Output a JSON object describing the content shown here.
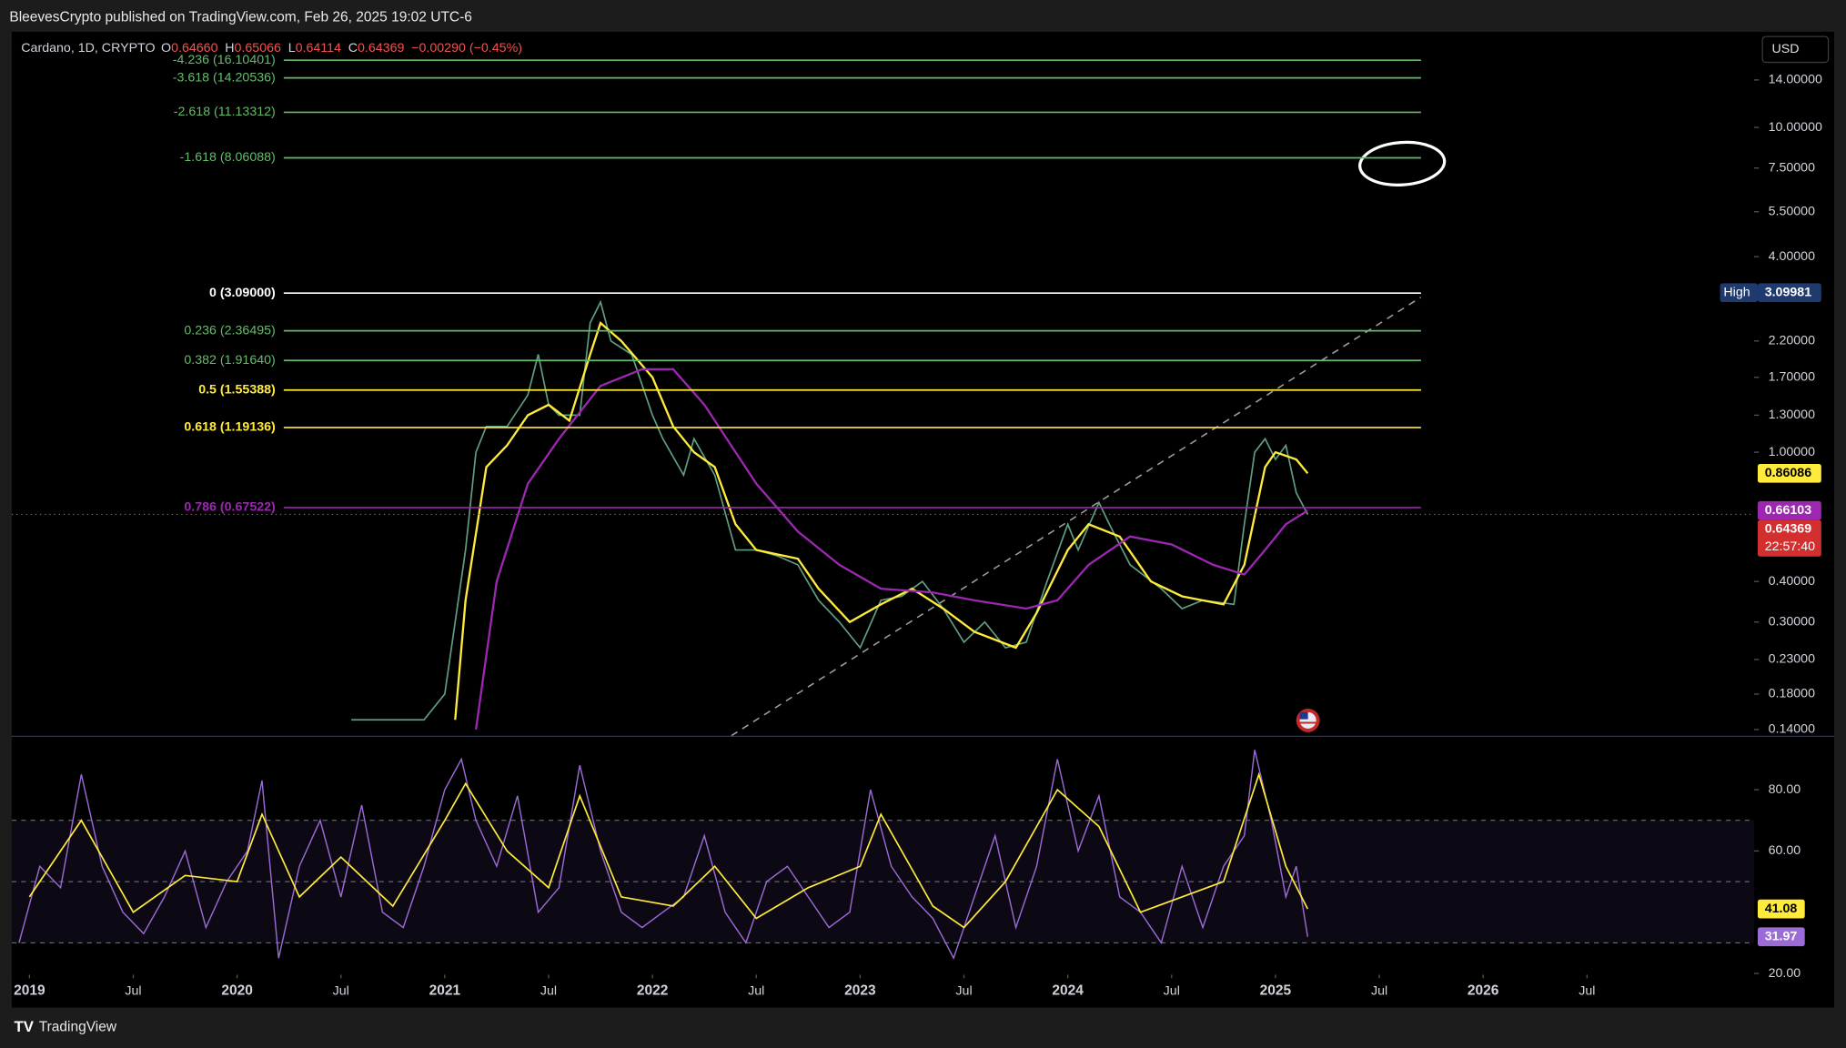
{
  "header": {
    "published": "BleevesCrypto published on TradingView.com, Feb 26, 2025 19:02 UTC-6"
  },
  "footer": {
    "brand": "TradingView"
  },
  "currency": "USD",
  "chart_data": [
    {
      "type": "line",
      "log_scale": true,
      "symbol": "Cardano, 1D, CRYPTO",
      "ohlc": [
        {
          "key": "O",
          "value": "0.64660"
        },
        {
          "key": "H",
          "value": "0.65066"
        },
        {
          "key": "L",
          "value": "0.64114"
        },
        {
          "key": "C",
          "value": "0.64369"
        }
      ],
      "change": "−0.00290 (−0.45%)",
      "xlim": [
        2018.915,
        2027.305
      ],
      "ylim": [
        0.134,
        19.7
      ],
      "yticks": [
        {
          "value": 14,
          "label": "14.00000"
        },
        {
          "value": 10,
          "label": "10.00000"
        },
        {
          "value": 7.5,
          "label": "7.50000"
        },
        {
          "value": 5.5,
          "label": "5.50000"
        },
        {
          "value": 4,
          "label": "4.00000"
        },
        {
          "value": 2.2,
          "label": "2.20000"
        },
        {
          "value": 1.7,
          "label": "1.70000"
        },
        {
          "value": 1.3,
          "label": "1.30000"
        },
        {
          "value": 1,
          "label": "1.00000"
        },
        {
          "value": 0.4,
          "label": "0.40000"
        },
        {
          "value": 0.3,
          "label": "0.30000"
        },
        {
          "value": 0.23,
          "label": "0.23000"
        },
        {
          "value": 0.18,
          "label": "0.18000"
        },
        {
          "value": 0.14,
          "label": "0.14000"
        }
      ],
      "fib_levels": [
        {
          "label": "-4.236 (16.10401)",
          "value": 16.10401,
          "color": "#66bb6a"
        },
        {
          "label": "-3.618 (14.20536)",
          "value": 14.20536,
          "color": "#66bb6a"
        },
        {
          "label": "-2.618 (11.13312)",
          "value": 11.13312,
          "color": "#66bb6a"
        },
        {
          "label": "-1.618 (8.06088)",
          "value": 8.06088,
          "color": "#66bb6a"
        },
        {
          "label": "0 (3.09000)",
          "value": 3.09,
          "color": "#ffffff"
        },
        {
          "label": "0.236 (2.36495)",
          "value": 2.36495,
          "color": "#66bb6a"
        },
        {
          "label": "0.382 (1.91640)",
          "value": 1.9164,
          "color": "#66bb6a"
        },
        {
          "label": "0.5 (1.55388)",
          "value": 1.55388,
          "color": "#ffeb3b"
        },
        {
          "label": "0.618 (1.19136)",
          "value": 1.19136,
          "color": "#ffeb3b"
        },
        {
          "label": "0.786 (0.67522)",
          "value": 0.67522,
          "color": "#9c27b0"
        }
      ],
      "high": {
        "label": "High",
        "value": 3.09981
      },
      "countdown": "22:57:40",
      "trendline": {
        "x": [
          2022.38,
          2025.7
        ],
        "values": [
          0.134,
          3.0
        ],
        "color": "#9e9e9e"
      },
      "series": [
        {
          "name": "ADA",
          "color": "#5f9f7f",
          "x": [
            2020.55,
            2020.9,
            2021.0,
            2021.05,
            2021.1,
            2021.15,
            2021.2,
            2021.3,
            2021.4,
            2021.45,
            2021.5,
            2021.55,
            2021.65,
            2021.7,
            2021.75,
            2021.8,
            2021.9,
            2022.0,
            2022.05,
            2022.15,
            2022.2,
            2022.3,
            2022.4,
            2022.5,
            2022.6,
            2022.7,
            2022.8,
            2022.9,
            2023.0,
            2023.1,
            2023.2,
            2023.3,
            2023.4,
            2023.5,
            2023.6,
            2023.7,
            2023.8,
            2023.9,
            2024.0,
            2024.05,
            2024.15,
            2024.2,
            2024.3,
            2024.45,
            2024.55,
            2024.65,
            2024.8,
            2024.85,
            2024.9,
            2024.95,
            2025.0,
            2025.05,
            2025.1,
            2025.155
          ],
          "values": [
            0.15,
            0.15,
            0.18,
            0.3,
            0.5,
            1.0,
            1.2,
            1.2,
            1.5,
            2.0,
            1.4,
            1.3,
            1.3,
            2.5,
            2.9,
            2.2,
            2.0,
            1.3,
            1.1,
            0.85,
            1.1,
            0.85,
            0.5,
            0.5,
            0.48,
            0.45,
            0.35,
            0.3,
            0.25,
            0.35,
            0.36,
            0.4,
            0.33,
            0.26,
            0.3,
            0.25,
            0.26,
            0.4,
            0.6,
            0.5,
            0.7,
            0.6,
            0.45,
            0.38,
            0.33,
            0.35,
            0.34,
            0.6,
            1.0,
            1.1,
            0.95,
            1.05,
            0.75,
            0.64369
          ]
        },
        {
          "name": "MA fast",
          "color": "#ffeb3b",
          "x": [
            2021.05,
            2021.1,
            2021.2,
            2021.3,
            2021.4,
            2021.5,
            2021.6,
            2021.7,
            2021.75,
            2021.85,
            2022.0,
            2022.1,
            2022.2,
            2022.3,
            2022.4,
            2022.5,
            2022.7,
            2022.8,
            2022.95,
            2023.1,
            2023.25,
            2023.4,
            2023.55,
            2023.75,
            2023.85,
            2024.0,
            2024.1,
            2024.25,
            2024.4,
            2024.55,
            2024.75,
            2024.85,
            2024.95,
            2025.0,
            2025.1,
            2025.155
          ],
          "values": [
            0.15,
            0.35,
            0.9,
            1.05,
            1.3,
            1.4,
            1.25,
            2.0,
            2.5,
            2.2,
            1.7,
            1.2,
            1.0,
            0.9,
            0.6,
            0.5,
            0.47,
            0.38,
            0.3,
            0.34,
            0.38,
            0.33,
            0.28,
            0.25,
            0.32,
            0.5,
            0.6,
            0.55,
            0.4,
            0.36,
            0.34,
            0.45,
            0.9,
            1.0,
            0.95,
            0.86086
          ]
        },
        {
          "name": "MA slow",
          "color": "#9c27b0",
          "x": [
            2021.15,
            2021.25,
            2021.4,
            2021.55,
            2021.75,
            2021.95,
            2022.1,
            2022.25,
            2022.5,
            2022.7,
            2022.9,
            2023.1,
            2023.35,
            2023.55,
            2023.8,
            2023.95,
            2024.1,
            2024.3,
            2024.5,
            2024.7,
            2024.85,
            2024.95,
            2025.05,
            2025.155
          ],
          "values": [
            0.14,
            0.4,
            0.8,
            1.1,
            1.6,
            1.8,
            1.8,
            1.4,
            0.8,
            0.57,
            0.45,
            0.38,
            0.37,
            0.35,
            0.33,
            0.35,
            0.45,
            0.55,
            0.52,
            0.45,
            0.42,
            0.5,
            0.6,
            0.66103
          ]
        }
      ]
    },
    {
      "type": "line",
      "xlim": [
        2018.915,
        2027.305
      ],
      "ylim": [
        19.6,
        96.5
      ],
      "yticks": [
        {
          "value": 80,
          "label": "80.00"
        },
        {
          "value": 60,
          "label": "60.00"
        },
        {
          "value": 20,
          "label": "20.00"
        }
      ],
      "hlines": [
        70,
        50,
        30
      ],
      "xticks": [
        {
          "value": 2019,
          "label": "2019"
        },
        {
          "value": 2019.5,
          "label": "Jul"
        },
        {
          "value": 2020,
          "label": "2020"
        },
        {
          "value": 2020.5,
          "label": "Jul"
        },
        {
          "value": 2021,
          "label": "2021"
        },
        {
          "value": 2021.5,
          "label": "Jul"
        },
        {
          "value": 2022,
          "label": "2022"
        },
        {
          "value": 2022.5,
          "label": "Jul"
        },
        {
          "value": 2023,
          "label": "2023"
        },
        {
          "value": 2023.5,
          "label": "Jul"
        },
        {
          "value": 2024,
          "label": "2024"
        },
        {
          "value": 2024.5,
          "label": "Jul"
        },
        {
          "value": 2025,
          "label": "2025"
        },
        {
          "value": 2025.5,
          "label": "Jul"
        },
        {
          "value": 2026,
          "label": "2026"
        },
        {
          "value": 2026.5,
          "label": "Jul"
        }
      ],
      "series": [
        {
          "name": "RSI",
          "color": "#9b6bd6",
          "x": [
            2018.95,
            2019.05,
            2019.15,
            2019.25,
            2019.35,
            2019.45,
            2019.55,
            2019.65,
            2019.75,
            2019.85,
            2019.95,
            2020.05,
            2020.12,
            2020.2,
            2020.3,
            2020.4,
            2020.5,
            2020.6,
            2020.7,
            2020.8,
            2020.9,
            2021.0,
            2021.08,
            2021.15,
            2021.25,
            2021.35,
            2021.45,
            2021.55,
            2021.65,
            2021.75,
            2021.85,
            2021.95,
            2022.05,
            2022.15,
            2022.25,
            2022.35,
            2022.45,
            2022.55,
            2022.65,
            2022.75,
            2022.85,
            2022.95,
            2023.05,
            2023.15,
            2023.25,
            2023.35,
            2023.45,
            2023.55,
            2023.65,
            2023.75,
            2023.85,
            2023.95,
            2024.05,
            2024.15,
            2024.25,
            2024.35,
            2024.45,
            2024.55,
            2024.65,
            2024.75,
            2024.85,
            2024.9,
            2024.98,
            2025.05,
            2025.1,
            2025.155
          ],
          "values": [
            30,
            55,
            48,
            85,
            55,
            40,
            33,
            45,
            60,
            35,
            50,
            60,
            83,
            25,
            55,
            70,
            45,
            75,
            40,
            35,
            55,
            80,
            90,
            70,
            55,
            78,
            40,
            48,
            88,
            60,
            40,
            35,
            40,
            45,
            65,
            40,
            30,
            50,
            55,
            45,
            35,
            40,
            80,
            55,
            45,
            38,
            25,
            45,
            65,
            35,
            55,
            90,
            60,
            78,
            45,
            40,
            30,
            55,
            35,
            55,
            65,
            93,
            70,
            45,
            55,
            31.97
          ]
        },
        {
          "name": "RSI MA",
          "color": "#ffeb3b",
          "x": [
            2019.0,
            2019.25,
            2019.5,
            2019.75,
            2020.0,
            2020.12,
            2020.3,
            2020.5,
            2020.75,
            2021.0,
            2021.1,
            2021.3,
            2021.5,
            2021.65,
            2021.85,
            2022.1,
            2022.3,
            2022.5,
            2022.75,
            2023.0,
            2023.1,
            2023.35,
            2023.5,
            2023.7,
            2023.95,
            2024.15,
            2024.35,
            2024.55,
            2024.75,
            2024.92,
            2025.05,
            2025.155
          ],
          "values": [
            45,
            70,
            40,
            52,
            50,
            72,
            45,
            58,
            42,
            70,
            82,
            60,
            48,
            78,
            45,
            42,
            55,
            38,
            48,
            55,
            72,
            42,
            35,
            50,
            80,
            68,
            40,
            45,
            50,
            85,
            55,
            41.08
          ]
        }
      ]
    }
  ]
}
